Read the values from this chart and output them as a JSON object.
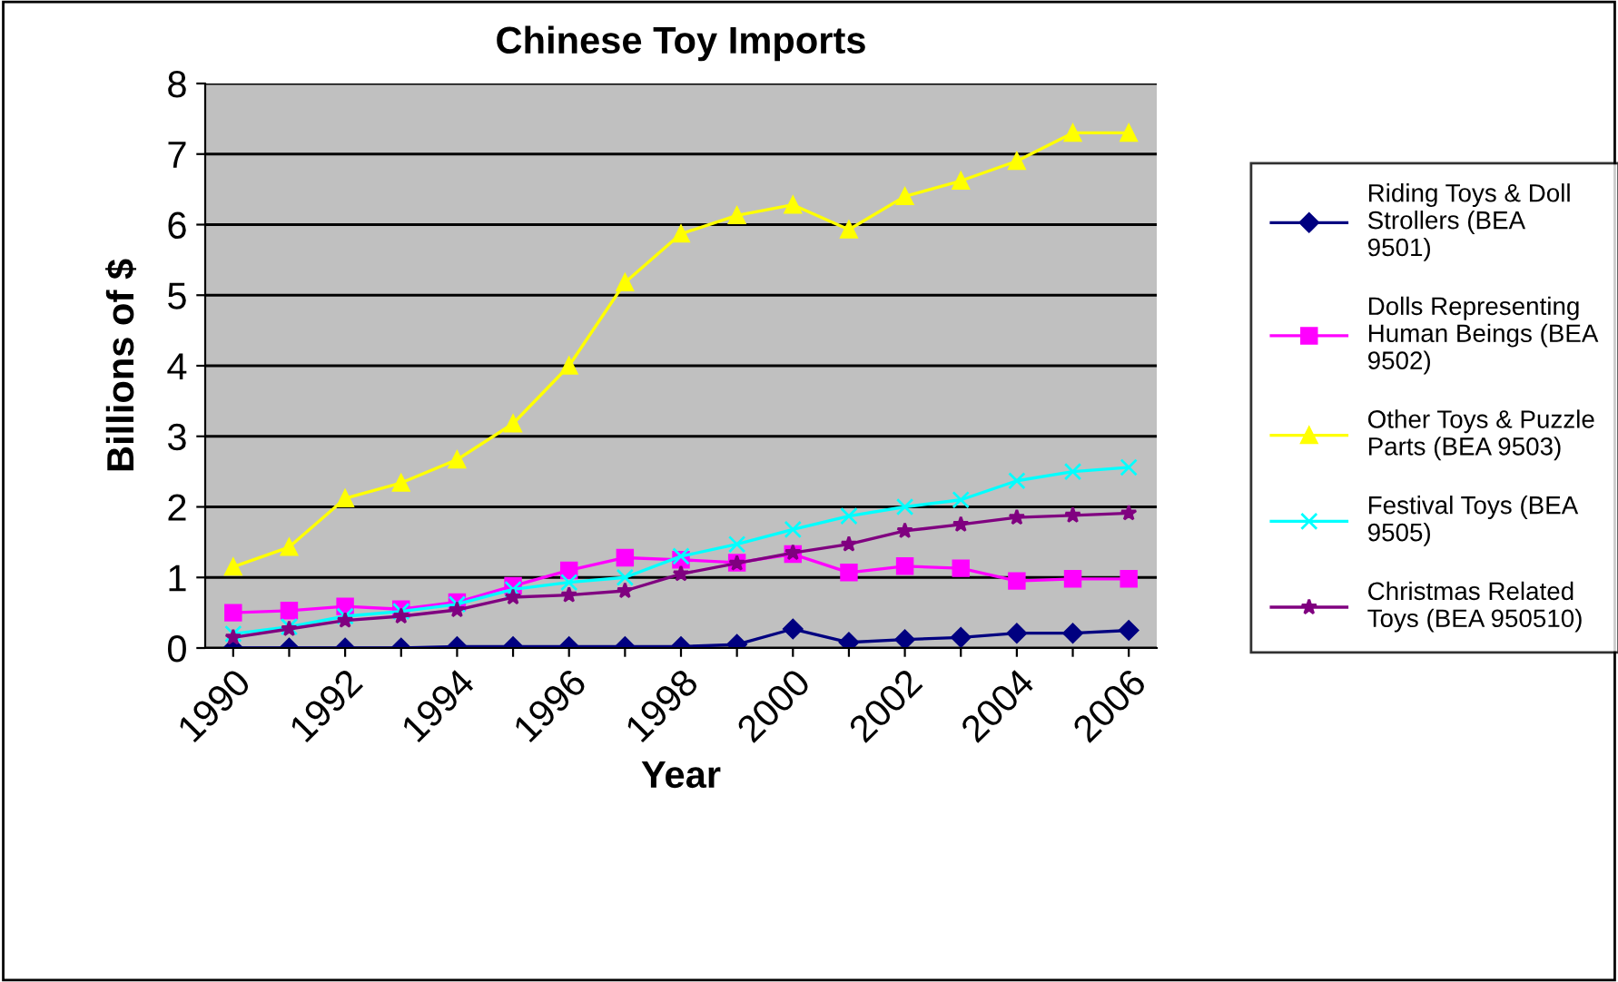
{
  "chart_data": {
    "type": "line",
    "title": "Chinese Toy Imports",
    "xlabel": "Year",
    "ylabel": "Billions of $",
    "categories": [
      "1990",
      null,
      "1992",
      null,
      "1994",
      null,
      "1996",
      null,
      "1998",
      null,
      "2000",
      null,
      "2002",
      null,
      "2004",
      null,
      "2006"
    ],
    "series": [
      {
        "name": "Riding Toys & Doll Strollers (BEA 9501)",
        "color": "#000080",
        "marker": "diamond",
        "values": [
          0,
          0,
          0,
          0,
          0.02,
          0.02,
          0.02,
          0.02,
          0.02,
          0.05,
          0.27,
          0.08,
          0.12,
          0.15,
          0.21,
          0.21,
          0.25
        ]
      },
      {
        "name": "Dolls Representing Human Beings (BEA 9502)",
        "color": "#ff00ff",
        "marker": "square",
        "values": [
          0.5,
          0.53,
          0.59,
          0.55,
          0.65,
          0.88,
          1.1,
          1.28,
          1.25,
          1.21,
          1.33,
          1.07,
          1.16,
          1.13,
          0.95,
          0.98,
          0.98
        ]
      },
      {
        "name": "Other Toys & Puzzle Parts (BEA 9503)",
        "color": "#ffff00",
        "marker": "triangle",
        "values": [
          1.15,
          1.43,
          2.12,
          2.34,
          2.67,
          3.18,
          4.0,
          5.18,
          5.87,
          6.13,
          6.28,
          5.93,
          6.4,
          6.62,
          6.9,
          7.3,
          7.3
        ]
      },
      {
        "name": "Festival Toys (BEA 9505)",
        "color": "#00ffff",
        "marker": "cross",
        "values": [
          0.2,
          0.3,
          0.45,
          0.52,
          0.62,
          0.83,
          0.93,
          1.0,
          1.3,
          1.47,
          1.68,
          1.87,
          2.0,
          2.1,
          2.37,
          2.5,
          2.56
        ]
      },
      {
        "name": "Christmas Related Toys (BEA 950510)",
        "color": "#800080",
        "marker": "star",
        "values": [
          0.15,
          0.27,
          0.39,
          0.45,
          0.54,
          0.72,
          0.75,
          0.81,
          1.05,
          1.2,
          1.35,
          1.47,
          1.66,
          1.75,
          1.85,
          1.88,
          1.91
        ]
      }
    ],
    "ylim": [
      0,
      8
    ],
    "yticks": [
      0,
      1,
      2,
      3,
      4,
      5,
      6,
      7,
      8
    ],
    "grid": "y",
    "legend": "right"
  }
}
